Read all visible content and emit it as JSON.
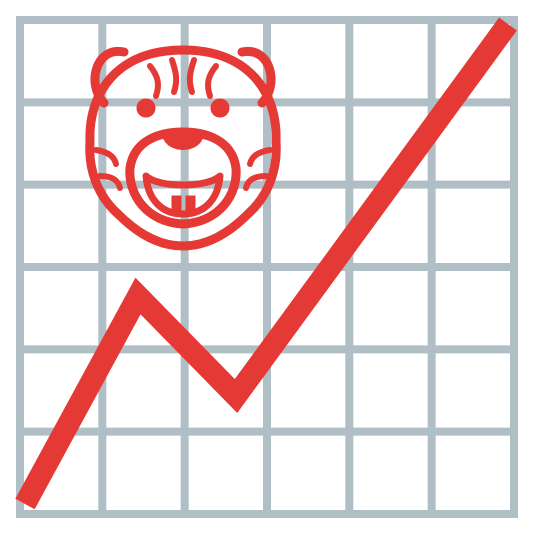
{
  "colors": {
    "grid": "#b0bec5",
    "line": "#e53935",
    "background": "#ffffff",
    "tiger": "#e53935"
  },
  "icons": {
    "mascot": "tiger-face-icon",
    "trend": "rising-trend-line"
  },
  "grid": {
    "columns": 6,
    "rows": 6
  }
}
